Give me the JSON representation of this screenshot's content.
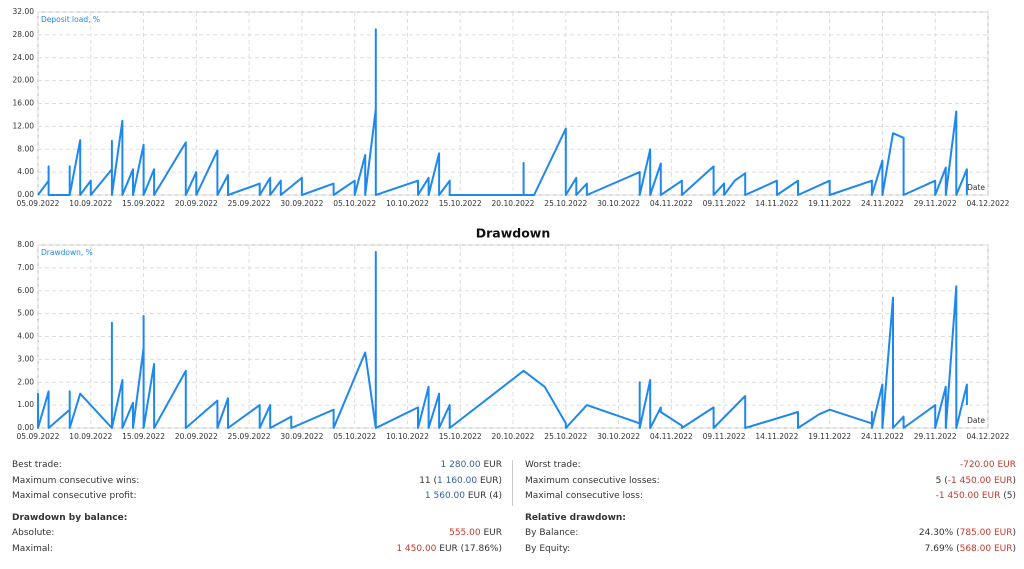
{
  "chart_data": [
    {
      "type": "line",
      "y_label": "Deposit load, %",
      "x_label": "Date",
      "color": "#1e88ee",
      "grid": true,
      "xlim": [
        "05.09.2022",
        "04.12.2022"
      ],
      "xticks": [
        "05.09.2022",
        "10.09.2022",
        "15.09.2022",
        "20.09.2022",
        "25.09.2022",
        "30.09.2022",
        "05.10.2022",
        "10.10.2022",
        "15.10.2022",
        "20.10.2022",
        "25.10.2022",
        "30.10.2022",
        "04.11.2022",
        "09.11.2022",
        "14.11.2022",
        "19.11.2022",
        "24.11.2022",
        "29.11.2022",
        "04.12.2022"
      ],
      "ylim": [
        0,
        32
      ],
      "yticks": [
        {
          "value": 0,
          "label": "0.00"
        },
        {
          "value": 4,
          "label": "4.00"
        },
        {
          "value": 8,
          "label": "8.00"
        },
        {
          "value": 12,
          "label": "12.00"
        },
        {
          "value": 16,
          "label": "16.00"
        },
        {
          "value": 20,
          "label": "20.00"
        },
        {
          "value": 24,
          "label": "24.00"
        },
        {
          "value": 28,
          "label": "28.00"
        },
        {
          "value": 32,
          "label": "32.00"
        }
      ],
      "x": [
        "05.09.2022",
        "06.09.2022",
        "06.09.2022",
        "06.09.2022",
        "06.09.2022",
        "08.09.2022",
        "08.09.2022",
        "08.09.2022",
        "09.09.2022",
        "09.09.2022",
        "10.09.2022",
        "10.09.2022",
        "12.09.2022",
        "12.09.2022",
        "12.09.2022",
        "13.09.2022",
        "13.09.2022",
        "14.09.2022",
        "14.09.2022",
        "15.09.2022",
        "15.09.2022",
        "16.09.2022",
        "16.09.2022",
        "19.09.2022",
        "19.09.2022",
        "20.09.2022",
        "20.09.2022",
        "22.09.2022",
        "22.09.2022",
        "23.09.2022",
        "23.09.2022",
        "26.09.2022",
        "26.09.2022",
        "27.09.2022",
        "27.09.2022",
        "28.09.2022",
        "28.09.2022",
        "30.09.2022",
        "30.09.2022",
        "03.10.2022",
        "03.10.2022",
        "05.10.2022",
        "05.10.2022",
        "06.10.2022",
        "06.10.2022",
        "07.10.2022",
        "07.10.2022",
        "07.10.2022",
        "11.10.2022",
        "11.10.2022",
        "12.10.2022",
        "12.10.2022",
        "13.10.2022",
        "13.10.2022",
        "14.10.2022",
        "14.10.2022",
        "21.10.2022",
        "21.10.2022",
        "21.10.2022",
        "22.10.2022",
        "25.10.2022",
        "25.10.2022",
        "26.10.2022",
        "26.10.2022",
        "27.10.2022",
        "27.10.2022",
        "01.11.2022",
        "01.11.2022",
        "02.11.2022",
        "02.11.2022",
        "03.11.2022",
        "03.11.2022",
        "05.11.2022",
        "05.11.2022",
        "08.11.2022",
        "08.11.2022",
        "09.11.2022",
        "09.11.2022",
        "10.11.2022",
        "11.11.2022",
        "11.11.2022",
        "14.11.2022",
        "14.11.2022",
        "16.11.2022",
        "16.11.2022",
        "19.11.2022",
        "19.11.2022",
        "23.11.2022",
        "23.11.2022",
        "24.11.2022",
        "24.11.2022",
        "25.11.2022",
        "26.11.2022",
        "26.11.2022",
        "29.11.2022",
        "29.11.2022",
        "30.11.2022",
        "30.11.2022",
        "01.12.2022",
        "01.12.2022",
        "02.12.2022",
        "02.12.2022"
      ],
      "values": [
        0,
        2.5,
        0,
        5,
        0,
        0,
        5,
        0,
        9.6,
        0,
        2.5,
        0,
        4.5,
        9.5,
        0,
        13,
        0,
        4.5,
        0,
        8.8,
        0,
        4.5,
        0,
        9.2,
        0,
        4,
        0,
        7.8,
        0,
        3.5,
        0,
        2,
        0,
        3,
        0,
        2.5,
        0,
        3,
        0,
        2,
        0,
        2.5,
        0,
        7,
        0,
        15,
        29,
        0,
        2.5,
        0,
        3,
        0,
        7.3,
        0,
        2.5,
        0,
        0,
        5.6,
        0,
        0,
        11.6,
        0,
        3,
        0,
        2,
        0,
        4,
        0,
        8,
        0,
        5.5,
        0,
        2.5,
        0,
        5,
        0,
        2,
        0,
        2.5,
        3.8,
        0,
        2.5,
        0,
        2.5,
        0,
        2.5,
        0,
        2.5,
        0,
        6,
        0,
        10.8,
        10,
        0,
        2.5,
        0,
        4.8,
        0,
        14.6,
        0,
        4.5,
        0
      ]
    },
    {
      "type": "line",
      "title": "Drawdown",
      "y_label": "Drawdown, %",
      "x_label": "Date",
      "color": "#1e88ee",
      "grid": true,
      "xlim": [
        "05.09.2022",
        "04.12.2022"
      ],
      "xticks": [
        "05.09.2022",
        "10.09.2022",
        "15.09.2022",
        "20.09.2022",
        "25.09.2022",
        "30.09.2022",
        "05.10.2022",
        "10.10.2022",
        "15.10.2022",
        "20.10.2022",
        "25.10.2022",
        "30.10.2022",
        "04.11.2022",
        "09.11.2022",
        "14.11.2022",
        "19.11.2022",
        "24.11.2022",
        "29.11.2022",
        "04.12.2022"
      ],
      "ylim": [
        0,
        8
      ],
      "yticks": [
        {
          "value": 0,
          "label": "0.00"
        },
        {
          "value": 1,
          "label": "1.00"
        },
        {
          "value": 2,
          "label": "2.00"
        },
        {
          "value": 3,
          "label": "3.00"
        },
        {
          "value": 4,
          "label": "4.00"
        },
        {
          "value": 5,
          "label": "5.00"
        },
        {
          "value": 6,
          "label": "6.00"
        },
        {
          "value": 7,
          "label": "7.00"
        },
        {
          "value": 8,
          "label": "8.00"
        }
      ],
      "x": [
        "05.09.2022",
        "05.09.2022",
        "05.09.2022",
        "06.09.2022",
        "06.09.2022",
        "08.09.2022",
        "08.09.2022",
        "08.09.2022",
        "09.09.2022",
        "12.09.2022",
        "12.09.2022",
        "12.09.2022",
        "13.09.2022",
        "13.09.2022",
        "14.09.2022",
        "14.09.2022",
        "15.09.2022",
        "15.09.2022",
        "15.09.2022",
        "16.09.2022",
        "16.09.2022",
        "19.09.2022",
        "19.09.2022",
        "22.09.2022",
        "22.09.2022",
        "23.09.2022",
        "23.09.2022",
        "26.09.2022",
        "26.09.2022",
        "27.09.2022",
        "27.09.2022",
        "29.09.2022",
        "29.09.2022",
        "03.10.2022",
        "03.10.2022",
        "06.10.2022",
        "07.10.2022",
        "07.10.2022",
        "07.10.2022",
        "11.10.2022",
        "11.10.2022",
        "12.10.2022",
        "12.10.2022",
        "13.10.2022",
        "13.10.2022",
        "14.10.2022",
        "14.10.2022",
        "21.10.2022",
        "23.10.2022",
        "25.10.2022",
        "25.10.2022",
        "27.10.2022",
        "01.11.2022",
        "01.11.2022",
        "01.11.2022",
        "02.11.2022",
        "02.11.2022",
        "03.11.2022",
        "03.11.2022",
        "05.11.2022",
        "05.11.2022",
        "08.11.2022",
        "08.11.2022",
        "11.11.2022",
        "11.11.2022",
        "16.11.2022",
        "16.11.2022",
        "18.11.2022",
        "19.11.2022",
        "23.11.2022",
        "23.11.2022",
        "23.11.2022",
        "24.11.2022",
        "24.11.2022",
        "25.11.2022",
        "25.11.2022",
        "26.11.2022",
        "26.11.2022",
        "29.11.2022",
        "29.11.2022",
        "30.11.2022",
        "30.11.2022",
        "01.12.2022",
        "01.12.2022",
        "02.12.2022",
        "02.12.2022"
      ],
      "values": [
        0,
        1.5,
        0,
        1.6,
        0,
        0.8,
        1.6,
        0,
        1.5,
        0,
        4.6,
        0,
        2.1,
        0,
        1.1,
        0,
        3.5,
        4.9,
        0,
        2.8,
        0,
        2.5,
        0,
        1.2,
        0,
        1.3,
        0,
        1,
        0,
        1,
        0,
        0.5,
        0,
        0.8,
        0,
        3.3,
        0,
        7.7,
        0,
        0.9,
        0,
        1.8,
        0,
        1.5,
        0,
        1,
        0,
        2.5,
        1.8,
        0.2,
        0,
        1,
        0.2,
        2,
        0,
        2.1,
        0,
        0.9,
        0.7,
        0.1,
        0,
        0.9,
        0,
        1.4,
        0,
        0.7,
        0,
        0.6,
        0.8,
        0.2,
        0.7,
        0,
        1.9,
        0,
        5.7,
        0,
        0.5,
        0,
        1,
        0,
        1.8,
        0,
        6.2,
        0,
        1.9,
        1
      ]
    }
  ],
  "stats": {
    "left": [
      {
        "label": "Best trade:",
        "parts": [
          {
            "text": "1 280.00",
            "color": "#2f5fa5"
          },
          {
            "text": " EUR"
          }
        ]
      },
      {
        "label": "Maximum consecutive wins:",
        "parts": [
          {
            "text": "11 ("
          },
          {
            "text": "1 160.00",
            "color": "#2f5fa5"
          },
          {
            "text": " EUR)"
          }
        ]
      },
      {
        "label": "Maximal consecutive profit:",
        "parts": [
          {
            "text": "1 560.00",
            "color": "#2f5fa5"
          },
          {
            "text": " EUR (4)"
          }
        ]
      },
      {
        "heading": "Drawdown by balance:"
      },
      {
        "label": "Absolute:",
        "parts": [
          {
            "text": "555.00",
            "color": "#c0392b"
          },
          {
            "text": " EUR"
          }
        ]
      },
      {
        "label": "Maximal:",
        "parts": [
          {
            "text": "1 450.00",
            "color": "#c0392b"
          },
          {
            "text": " EUR (17.86%)"
          }
        ]
      }
    ],
    "right": [
      {
        "label": "Worst trade:",
        "parts": [
          {
            "text": "-720.00 EUR",
            "color": "#c0392b"
          }
        ]
      },
      {
        "label": "Maximum consecutive losses:",
        "parts": [
          {
            "text": "5 ("
          },
          {
            "text": "-1 450.00 EUR",
            "color": "#c0392b"
          },
          {
            "text": ")"
          }
        ]
      },
      {
        "label": "Maximal consecutive loss:",
        "parts": [
          {
            "text": "-1 450.00 EUR",
            "color": "#c0392b"
          },
          {
            "text": " (5)"
          }
        ]
      },
      {
        "heading": "Relative drawdown:"
      },
      {
        "label": "By Balance:",
        "parts": [
          {
            "text": "24.30% ("
          },
          {
            "text": "785.00 EUR",
            "color": "#c0392b"
          },
          {
            "text": ")"
          }
        ]
      },
      {
        "label": "By Equity:",
        "parts": [
          {
            "text": "7.69% ("
          },
          {
            "text": "568.00 EUR",
            "color": "#c0392b"
          },
          {
            "text": ")"
          }
        ]
      }
    ]
  }
}
